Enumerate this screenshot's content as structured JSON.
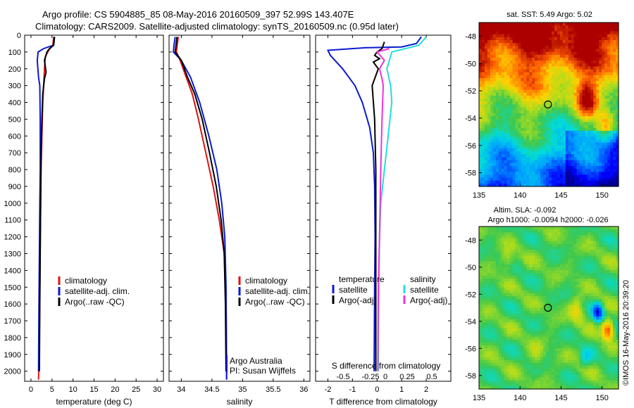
{
  "header": {
    "line1": "Argo profile: CS 5904885_85 08-May-2016 20160509_397 52.99S 143.407E",
    "line2": "Climatology: CARS2009. Satellite-adjusted climatology: synTS_20160509.nc (0.95d later)"
  },
  "colors": {
    "climatology": "#dd1111",
    "satellite": "#0a1ad0",
    "argo": "#000000",
    "sal_satellite": "#22dddd",
    "sal_argo": "#ee33dd"
  },
  "chart_data": [
    {
      "type": "line",
      "id": "temperature",
      "xlabel": "temperature (deg C)",
      "ylabel": "",
      "xlim": [
        -1.5,
        31.5
      ],
      "ylim": [
        2060,
        0
      ],
      "xticks": [
        0,
        5,
        10,
        15,
        20,
        25,
        30
      ],
      "yticks": [
        0,
        100,
        200,
        300,
        400,
        500,
        600,
        700,
        800,
        900,
        1000,
        1100,
        1200,
        1300,
        1400,
        1500,
        1600,
        1700,
        1800,
        1900,
        2000
      ],
      "legend": [
        "climatology",
        "satellite-adj. clim.",
        "Argo(..raw -QC)"
      ],
      "series": [
        {
          "name": "climatology",
          "color_key": "climatology",
          "points": [
            [
              5.4,
              10
            ],
            [
              5.2,
              60
            ],
            [
              4.2,
              90
            ],
            [
              3.4,
              130
            ],
            [
              3.2,
              200
            ],
            [
              3.0,
              300
            ],
            [
              2.8,
              400
            ],
            [
              2.6,
              600
            ],
            [
              2.4,
              800
            ],
            [
              2.3,
              1000
            ],
            [
              2.2,
              1200
            ],
            [
              2.1,
              1500
            ],
            [
              2.0,
              1800
            ],
            [
              1.8,
              2050
            ]
          ]
        },
        {
          "name": "satellite-adj. clim.",
          "color_key": "satellite",
          "points": [
            [
              5.6,
              10
            ],
            [
              5.3,
              60
            ],
            [
              3.0,
              80
            ],
            [
              1.7,
              100
            ],
            [
              1.5,
              150
            ],
            [
              1.8,
              250
            ],
            [
              2.1,
              300
            ],
            [
              2.2,
              500
            ],
            [
              2.2,
              800
            ],
            [
              2.1,
              1000
            ],
            [
              2.0,
              1300
            ],
            [
              1.9,
              1600
            ],
            [
              1.8,
              2000
            ]
          ]
        },
        {
          "name": "Argo(..raw -QC)",
          "color_key": "argo",
          "points": [
            [
              5.6,
              10
            ],
            [
              5.4,
              60
            ],
            [
              4.4,
              80
            ],
            [
              3.8,
              100
            ],
            [
              3.2,
              150
            ],
            [
              3.6,
              220
            ],
            [
              3.2,
              260
            ],
            [
              2.8,
              350
            ],
            [
              2.6,
              500
            ],
            [
              2.4,
              700
            ],
            [
              2.3,
              1000
            ],
            [
              2.2,
              1300
            ],
            [
              2.1,
              1600
            ],
            [
              2.0,
              2000
            ]
          ]
        }
      ]
    },
    {
      "type": "line",
      "id": "salinity",
      "xlabel": "salinity",
      "ylabel": "",
      "xlim": [
        33.8,
        36.1
      ],
      "ylim": [
        2060,
        0
      ],
      "xticks": [
        34,
        34.5,
        35,
        35.5,
        36
      ],
      "legend": [
        "climatology",
        "satellite-adj. clim.",
        "Argo(..raw -QC)"
      ],
      "annotation": [
        "Argo Australia",
        "PI: Susan Wijffels"
      ],
      "series": [
        {
          "name": "climatology",
          "color_key": "climatology",
          "points": [
            [
              33.95,
              10
            ],
            [
              33.92,
              100
            ],
            [
              33.98,
              150
            ],
            [
              34.08,
              250
            ],
            [
              34.18,
              350
            ],
            [
              34.28,
              500
            ],
            [
              34.4,
              700
            ],
            [
              34.52,
              900
            ],
            [
              34.62,
              1100
            ],
            [
              34.7,
              1300
            ],
            [
              34.73,
              1600
            ],
            [
              34.74,
              2050
            ]
          ]
        },
        {
          "name": "satellite-adj. clim.",
          "color_key": "satellite",
          "points": [
            [
              33.9,
              10
            ],
            [
              33.88,
              60
            ],
            [
              33.87,
              100
            ],
            [
              34.0,
              150
            ],
            [
              34.15,
              250
            ],
            [
              34.3,
              400
            ],
            [
              34.45,
              600
            ],
            [
              34.58,
              800
            ],
            [
              34.66,
              1000
            ],
            [
              34.71,
              1200
            ],
            [
              34.73,
              1500
            ],
            [
              34.74,
              2050
            ]
          ]
        },
        {
          "name": "Argo(..raw -QC)",
          "color_key": "argo",
          "points": [
            [
              33.93,
              10
            ],
            [
              33.9,
              100
            ],
            [
              34.0,
              150
            ],
            [
              34.1,
              250
            ],
            [
              34.22,
              350
            ],
            [
              34.34,
              500
            ],
            [
              34.46,
              700
            ],
            [
              34.57,
              900
            ],
            [
              34.65,
              1100
            ],
            [
              34.7,
              1300
            ],
            [
              34.72,
              1600
            ],
            [
              34.73,
              2000
            ]
          ]
        }
      ]
    },
    {
      "type": "line",
      "id": "differences",
      "xlabel": "T difference from climatology",
      "xlabel_top": "S difference from climatology",
      "xlim": [
        -2.5,
        3.0
      ],
      "ylim": [
        2060,
        0
      ],
      "xticks": [
        -2,
        -1,
        0,
        1,
        2
      ],
      "s_ticks": [
        "-0.5",
        "-0.25",
        "0",
        "0.25",
        "0.5"
      ],
      "legend_temperature": [
        "temperature",
        "satellite",
        "Argo(-adj)"
      ],
      "legend_salinity": [
        "salinity",
        "satellite",
        "Argo(-adj)"
      ],
      "series": [
        {
          "name": "T satellite",
          "color_key": "satellite",
          "points": [
            [
              1.8,
              10
            ],
            [
              1.6,
              50
            ],
            [
              1.0,
              70
            ],
            [
              -0.5,
              75
            ],
            [
              -2.0,
              90
            ],
            [
              -1.9,
              120
            ],
            [
              -1.4,
              200
            ],
            [
              -0.9,
              300
            ],
            [
              -0.6,
              400
            ],
            [
              -0.3,
              550
            ],
            [
              -0.15,
              700
            ],
            [
              -0.1,
              900
            ],
            [
              -0.08,
              1200
            ],
            [
              -0.1,
              1500
            ],
            [
              -0.12,
              2000
            ]
          ]
        },
        {
          "name": "T Argo(-adj)",
          "color_key": "argo",
          "points": [
            [
              0.3,
              40
            ],
            [
              0.2,
              80
            ],
            [
              0.0,
              100
            ],
            [
              -0.1,
              120
            ],
            [
              0.1,
              140
            ],
            [
              -0.15,
              160
            ],
            [
              0.05,
              200
            ],
            [
              -0.2,
              300
            ],
            [
              -0.1,
              500
            ],
            [
              -0.05,
              800
            ],
            [
              -0.05,
              1200
            ],
            [
              -0.05,
              2000
            ]
          ]
        },
        {
          "name": "S satellite",
          "color_key": "sal_satellite",
          "points": [
            [
              2.0,
              10
            ],
            [
              1.7,
              60
            ],
            [
              0.6,
              100
            ],
            [
              0.4,
              200
            ],
            [
              0.55,
              300
            ],
            [
              0.6,
              400
            ],
            [
              0.45,
              600
            ],
            [
              0.3,
              800
            ],
            [
              0.15,
              1000
            ],
            [
              0.1,
              1200
            ],
            [
              0.07,
              1500
            ],
            [
              0.05,
              2000
            ]
          ]
        },
        {
          "name": "S Argo(-adj)",
          "color_key": "sal_argo",
          "points": [
            [
              0.5,
              80
            ],
            [
              0.0,
              100
            ],
            [
              0.3,
              150
            ],
            [
              0.1,
              200
            ],
            [
              0.2,
              260
            ],
            [
              0.25,
              300
            ],
            [
              0.2,
              500
            ],
            [
              0.15,
              800
            ],
            [
              0.1,
              1200
            ],
            [
              0.05,
              1500
            ],
            [
              0.03,
              2000
            ]
          ]
        }
      ]
    },
    {
      "type": "heatmap",
      "id": "sst_map",
      "title": "sat. SST: 5.49  Argo: 5.02",
      "xticks": [
        "135",
        "140",
        "145",
        "150"
      ],
      "yticks": [
        "-48",
        "-50",
        "-52",
        "-54",
        "-56",
        "-58"
      ],
      "xlim": [
        135,
        152
      ],
      "ylim": [
        -59,
        -47
      ],
      "marker": [
        143.4,
        -53.0
      ]
    },
    {
      "type": "heatmap",
      "id": "sla_map",
      "title_line1": "Altim. SLA: -0.092",
      "title_line2": "Argo h1000: -0.0094 h2000: -0.026",
      "xticks": [
        "135",
        "140",
        "145",
        "150"
      ],
      "yticks": [
        "-48",
        "-50",
        "-52",
        "-54",
        "-56",
        "-58"
      ],
      "xlim": [
        135,
        152
      ],
      "ylim": [
        -59,
        -47
      ],
      "marker": [
        143.4,
        -53.0
      ]
    }
  ],
  "footer": {
    "credit": "©IMOS 16-May-2016 20:39:20"
  }
}
